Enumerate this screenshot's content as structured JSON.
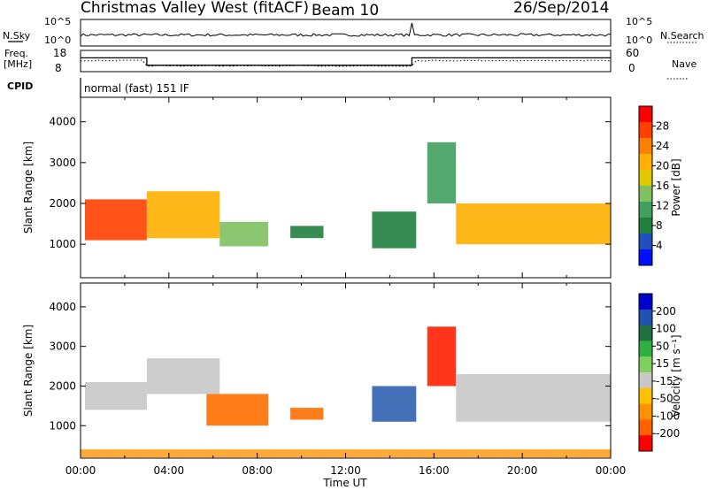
{
  "header": {
    "station": "Christmas Valley West (fitACF)",
    "beam": "Beam 10",
    "date": "26/Sep/2014"
  },
  "top_panel": {
    "left_label": "N.Sky",
    "left_ticks": [
      "10^5",
      "10^0"
    ],
    "right_label": "N.Search",
    "right_ticks": [
      "10^5",
      "10^0"
    ]
  },
  "freq_panel": {
    "left_label_1": "Freq.",
    "left_label_2": "[MHz]",
    "left_ticks": [
      "18",
      "8"
    ],
    "right_label": "Nave",
    "right_ticks": [
      "60",
      "0"
    ]
  },
  "cpid": {
    "label": "CPID",
    "mode": "normal (fast) 151 IF"
  },
  "panels": {
    "ylabel": "Slant Range [km]",
    "yticks": [
      "4000",
      "3000",
      "2000",
      "1000"
    ],
    "xlabel": "Time UT",
    "xticks": [
      "00:00",
      "04:00",
      "08:00",
      "12:00",
      "16:00",
      "20:00",
      "00:00"
    ]
  },
  "power_scale": {
    "label": "Power [dB]",
    "ticks": [
      "28",
      "24",
      "20",
      "16",
      "12",
      "8",
      "4"
    ],
    "colors": [
      "#ff0000",
      "#ff4000",
      "#ff8000",
      "#ffb000",
      "#e0c800",
      "#80c060",
      "#40a060",
      "#208040",
      "#2050c0",
      "#0010ff"
    ]
  },
  "velocity_scale": {
    "label": "Velocity [m s⁻¹]",
    "ticks": [
      "200",
      "100",
      "50",
      "15",
      "-15",
      "-50",
      "-100",
      "-200"
    ],
    "colors": [
      "#0000cc",
      "#2050b0",
      "#207040",
      "#30b040",
      "#80d060",
      "#c8c8c8",
      "#ffc000",
      "#ff9000",
      "#ff6000",
      "#ff0000"
    ]
  },
  "chart_data": {
    "type": "heatmap",
    "title": "Christmas Valley West (fitACF)",
    "subtitle": "Beam 10",
    "xlabel": "Time UT",
    "ylabel": "Slant Range [km]",
    "xlim": [
      0,
      24
    ],
    "ylim": [
      180,
      4600
    ],
    "x_tick_labels": [
      "00:00",
      "04:00",
      "08:00",
      "12:00",
      "16:00",
      "20:00",
      "00:00"
    ],
    "y_ticks": [
      1000,
      2000,
      3000,
      4000
    ],
    "frequency_mhz": [
      {
        "from": 0,
        "to": 3,
        "value": 14.5
      },
      {
        "from": 3,
        "to": 15,
        "value": 11
      },
      {
        "from": 15,
        "to": 24,
        "value": 14.5
      }
    ],
    "power_echo_regions": [
      {
        "t0": 0.2,
        "t1": 3.0,
        "r_low": 1100,
        "r_high": 2100,
        "power_db": 26
      },
      {
        "t0": 3.0,
        "t1": 6.3,
        "r_low": 1150,
        "r_high": 2300,
        "power_db": 20
      },
      {
        "t0": 6.3,
        "t1": 8.5,
        "r_low": 950,
        "r_high": 1550,
        "power_db": 14
      },
      {
        "t0": 9.5,
        "t1": 11.0,
        "r_low": 1150,
        "r_high": 1450,
        "power_db": 10
      },
      {
        "t0": 13.2,
        "t1": 15.2,
        "r_low": 900,
        "r_high": 1800,
        "power_db": 8
      },
      {
        "t0": 15.7,
        "t1": 17.0,
        "r_low": 2000,
        "r_high": 3500,
        "power_db": 12
      },
      {
        "t0": 17.0,
        "t1": 24.0,
        "r_low": 1000,
        "r_high": 2000,
        "power_db": 22
      }
    ],
    "velocity_echo_regions": [
      {
        "t0": 0.2,
        "t1": 3.0,
        "r_low": 1400,
        "r_high": 2100,
        "velocity": 0
      },
      {
        "t0": 3.0,
        "t1": 6.3,
        "r_low": 1800,
        "r_high": 2700,
        "velocity": 0
      },
      {
        "t0": 5.7,
        "t1": 8.5,
        "r_low": 1000,
        "r_high": 1800,
        "velocity": -60
      },
      {
        "t0": 9.5,
        "t1": 11.0,
        "r_low": 1150,
        "r_high": 1450,
        "velocity": -70
      },
      {
        "t0": 13.2,
        "t1": 15.2,
        "r_low": 1100,
        "r_high": 2000,
        "velocity": 120
      },
      {
        "t0": 15.7,
        "t1": 17.0,
        "r_low": 2000,
        "r_high": 3500,
        "velocity": -150
      },
      {
        "t0": 17.0,
        "t1": 24.0,
        "r_low": 1100,
        "r_high": 2300,
        "velocity": 0
      },
      {
        "t0": 0.0,
        "t1": 24.0,
        "r_low": 200,
        "r_high": 400,
        "velocity": -20
      }
    ]
  }
}
